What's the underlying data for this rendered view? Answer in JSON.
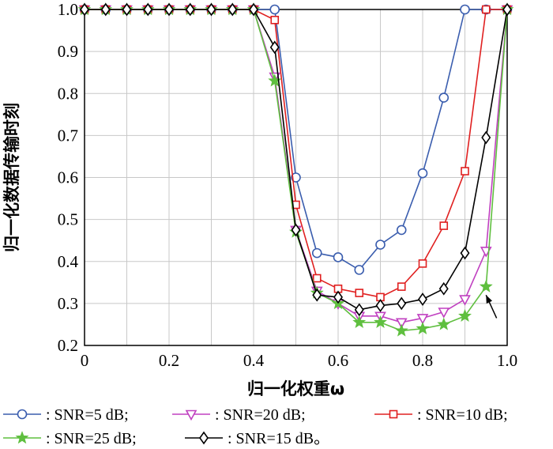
{
  "chart_data": {
    "type": "line",
    "xlabel": "归一化权重ω",
    "ylabel": "归一化数据传输时刻",
    "xlim": [
      0,
      1.0
    ],
    "ylim": [
      0.2,
      1.0
    ],
    "xticks": [
      "0",
      "0.2",
      "0.4",
      "0.6",
      "0.8",
      "1.0"
    ],
    "yticks": [
      "0.2",
      "0.3",
      "0.4",
      "0.5",
      "0.6",
      "0.7",
      "0.8",
      "0.9",
      "1.0"
    ],
    "grid": true,
    "legend_position": "bottom",
    "x": [
      0,
      0.05,
      0.1,
      0.15,
      0.2,
      0.25,
      0.3,
      0.35,
      0.4,
      0.45,
      0.5,
      0.55,
      0.6,
      0.65,
      0.7,
      0.75,
      0.8,
      0.85,
      0.9,
      0.95,
      1.0
    ],
    "series": [
      {
        "name": ": SNR=5 dB;",
        "color": "#3a5dae",
        "marker": "circle",
        "values": [
          1.0,
          1.0,
          1.0,
          1.0,
          1.0,
          1.0,
          1.0,
          1.0,
          1.0,
          1.0,
          0.6,
          0.42,
          0.41,
          0.38,
          0.44,
          0.475,
          0.61,
          0.79,
          1.0,
          1.0,
          1.0
        ]
      },
      {
        "name": ": SNR=20 dB;",
        "color": "#c040c0",
        "marker": "triangle-down",
        "values": [
          1.0,
          1.0,
          1.0,
          1.0,
          1.0,
          1.0,
          1.0,
          1.0,
          1.0,
          0.84,
          0.475,
          0.33,
          0.3,
          0.27,
          0.27,
          0.255,
          0.265,
          0.28,
          0.31,
          0.425,
          1.0
        ]
      },
      {
        "name": ": SNR=10 dB;",
        "color": "#e02020",
        "marker": "square",
        "values": [
          1.0,
          1.0,
          1.0,
          1.0,
          1.0,
          1.0,
          1.0,
          1.0,
          1.0,
          0.975,
          0.535,
          0.36,
          0.335,
          0.325,
          0.315,
          0.34,
          0.395,
          0.485,
          0.615,
          1.0,
          1.0
        ]
      },
      {
        "name": ": SNR=25 dB;",
        "color": "#5fbf3f",
        "marker": "star",
        "values": [
          1.0,
          1.0,
          1.0,
          1.0,
          1.0,
          1.0,
          1.0,
          1.0,
          1.0,
          0.83,
          0.47,
          0.325,
          0.3,
          0.255,
          0.255,
          0.235,
          0.24,
          0.25,
          0.27,
          0.34,
          1.0
        ]
      },
      {
        "name": ": SNR=15 dB。",
        "color": "#000000",
        "marker": "diamond",
        "values": [
          1.0,
          1.0,
          1.0,
          1.0,
          1.0,
          1.0,
          1.0,
          1.0,
          1.0,
          0.91,
          0.475,
          0.32,
          0.315,
          0.285,
          0.295,
          0.3,
          0.31,
          0.335,
          0.42,
          0.695,
          1.0
        ]
      }
    ],
    "legend_order": [
      0,
      1,
      2,
      3,
      4
    ]
  }
}
